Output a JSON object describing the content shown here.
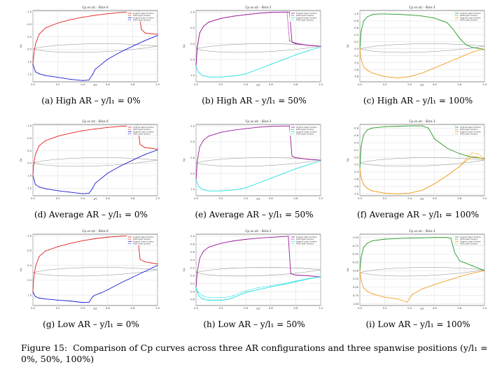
{
  "colors": {
    "red": "#e02020",
    "blue": "#1a1ad8",
    "purple": "#9a1a9a",
    "cyan": "#22e0e0",
    "green": "#229922",
    "orange": "#f0a020",
    "grid": "#dddddd",
    "profile": "#888888"
  },
  "chart_data": [
    {
      "type": "line",
      "title": "Cp vs x/c - Slice 0",
      "xlabel": "x/c",
      "ylabel": "Cp",
      "caption": "(a) High AR – y/l₁ = 0%",
      "palette": [
        "red",
        "blue"
      ],
      "legend": [
        "Original Upper Surface",
        "POD Upper Surface",
        "Original Lower Surface",
        "POD Lower Surface"
      ],
      "xticks": [
        "0.0",
        "0.2",
        "0.4",
        "0.6",
        "0.8",
        "1.0"
      ],
      "xlim": [
        0,
        1
      ],
      "yticks": [
        "-1.0",
        "-0.5",
        "0.0",
        "0.5",
        "1.0",
        "1.5"
      ],
      "ylim": [
        -1.05,
        1.8
      ],
      "upper": {
        "x": [
          0,
          0.005,
          0.02,
          0.05,
          0.1,
          0.2,
          0.3,
          0.4,
          0.5,
          0.6,
          0.7,
          0.8,
          0.85,
          0.87,
          0.9,
          0.95,
          1.0
        ],
        "y": [
          1.1,
          0.8,
          0.3,
          -0.1,
          -0.35,
          -0.55,
          -0.68,
          -0.78,
          -0.86,
          -0.92,
          -0.97,
          -1.0,
          -1.02,
          -0.3,
          -0.15,
          -0.12,
          -0.1
        ]
      },
      "lower": {
        "x": [
          0,
          0.02,
          0.05,
          0.1,
          0.2,
          0.3,
          0.4,
          0.45,
          0.48,
          0.5,
          0.55,
          0.6,
          0.7,
          0.8,
          0.9,
          1.0
        ],
        "y": [
          1.1,
          1.4,
          1.48,
          1.55,
          1.62,
          1.7,
          1.75,
          1.73,
          1.5,
          1.3,
          1.1,
          0.9,
          0.62,
          0.38,
          0.15,
          -0.05
        ]
      }
    },
    {
      "type": "line",
      "title": "Cp vs x/c - Slice 2",
      "xlabel": "x/c",
      "ylabel": "Cp",
      "caption": "(b) High AR – y/l₁ = 50%",
      "palette": [
        "purple",
        "cyan"
      ],
      "legend": [
        "Original Upper Surface",
        "POD Upper Surface",
        "Original Lower Surface",
        "POD Lower Surface"
      ],
      "xticks": [
        "0.0",
        "0.2",
        "0.4",
        "0.6",
        "0.8",
        "1.0"
      ],
      "xlim": [
        0,
        1
      ],
      "yticks": [
        "-1.0",
        "-0.5",
        "0.0",
        "0.5",
        "1.0"
      ],
      "ylim": [
        -1.05,
        1.2
      ],
      "upper": {
        "x": [
          0,
          0.01,
          0.03,
          0.06,
          0.1,
          0.2,
          0.3,
          0.4,
          0.5,
          0.6,
          0.7,
          0.75,
          0.77,
          0.8,
          0.9,
          1.0
        ],
        "y": [
          0.7,
          0.1,
          -0.35,
          -0.55,
          -0.68,
          -0.8,
          -0.87,
          -0.92,
          -0.96,
          -0.99,
          -1.0,
          -1.0,
          -0.05,
          0.0,
          0.05,
          0.08
        ]
      },
      "upper2": {
        "x": [
          0,
          0.01,
          0.03,
          0.06,
          0.1,
          0.2,
          0.3,
          0.4,
          0.5,
          0.6,
          0.7,
          0.73,
          0.75,
          0.8,
          0.9,
          1.0
        ],
        "y": [
          0.7,
          0.1,
          -0.35,
          -0.55,
          -0.68,
          -0.8,
          -0.87,
          -0.92,
          -0.96,
          -0.99,
          -1.0,
          -1.0,
          -0.1,
          -0.02,
          0.05,
          0.08
        ]
      },
      "lower": {
        "x": [
          0,
          0.02,
          0.05,
          0.1,
          0.2,
          0.3,
          0.4,
          0.5,
          0.6,
          0.7,
          0.8,
          0.9,
          1.0
        ],
        "y": [
          0.7,
          0.9,
          1.0,
          1.05,
          1.05,
          1.02,
          0.95,
          0.8,
          0.65,
          0.5,
          0.35,
          0.22,
          0.1
        ]
      }
    },
    {
      "type": "line",
      "title": "Cp vs x/c - Slice 3",
      "xlabel": "x/c",
      "ylabel": "Cp",
      "caption": "(c) High AR – y/l₁ = 100%",
      "palette": [
        "green",
        "orange"
      ],
      "legend": [
        "Original Upper Surface",
        "POD Upper Surface",
        "Original Lower Surface",
        "POD Lower Surface"
      ],
      "xticks": [
        "0.0",
        "0.2",
        "0.4",
        "0.6",
        "0.8",
        "1.0"
      ],
      "xlim": [
        0,
        1
      ],
      "yticks": [
        "-1.0",
        "-0.8",
        "-0.6",
        "-0.4",
        "-0.2",
        "0.0",
        "0.2",
        "0.4",
        "0.6",
        "0.8"
      ],
      "ylim": [
        -1.1,
        0.95
      ],
      "upper": {
        "x": [
          0,
          0.01,
          0.03,
          0.06,
          0.1,
          0.15,
          0.2,
          0.3,
          0.4,
          0.5,
          0.6,
          0.7,
          0.75,
          0.8,
          0.85,
          0.9,
          1.0
        ],
        "y": [
          0.0,
          -0.5,
          -0.8,
          -0.92,
          -0.98,
          -1.0,
          -1.0,
          -0.99,
          -0.97,
          -0.94,
          -0.88,
          -0.75,
          -0.55,
          -0.3,
          -0.12,
          -0.04,
          0.02
        ]
      },
      "lower": {
        "x": [
          0,
          0.01,
          0.03,
          0.06,
          0.1,
          0.2,
          0.3,
          0.4,
          0.5,
          0.6,
          0.7,
          0.8,
          0.9,
          0.95,
          1.0
        ],
        "y": [
          0.0,
          0.3,
          0.52,
          0.62,
          0.7,
          0.8,
          0.84,
          0.8,
          0.7,
          0.55,
          0.4,
          0.25,
          0.1,
          0.04,
          0.02
        ]
      }
    },
    {
      "type": "line",
      "title": "Cp vs x/c - Slice 0",
      "xlabel": "x/c",
      "ylabel": "Cp",
      "caption": "(d) Average AR – y/l₁ = 0%",
      "palette": [
        "red",
        "blue"
      ],
      "legend": [
        "Original Upper Surface",
        "POD Upper Surface",
        "Original Lower Surface",
        "POD Lower Surface"
      ],
      "xticks": [
        "0.0",
        "0.2",
        "0.4",
        "0.6",
        "0.8",
        "1.0"
      ],
      "xlim": [
        0,
        1
      ],
      "yticks": [
        "-1.0",
        "-0.5",
        "0.0",
        "0.5",
        "1.0",
        "1.5"
      ],
      "ylim": [
        -1.05,
        1.8
      ],
      "upper": {
        "x": [
          0,
          0.005,
          0.02,
          0.05,
          0.1,
          0.2,
          0.3,
          0.4,
          0.5,
          0.6,
          0.7,
          0.8,
          0.84,
          0.86,
          0.9,
          0.95,
          1.0
        ],
        "y": [
          1.0,
          0.6,
          0.15,
          -0.2,
          -0.4,
          -0.58,
          -0.7,
          -0.8,
          -0.87,
          -0.93,
          -0.97,
          -1.0,
          -1.02,
          -0.25,
          -0.12,
          -0.1,
          -0.05
        ]
      },
      "lower": {
        "x": [
          0,
          0.02,
          0.05,
          0.1,
          0.2,
          0.3,
          0.4,
          0.45,
          0.48,
          0.5,
          0.55,
          0.6,
          0.7,
          0.8,
          0.9,
          1.0
        ],
        "y": [
          1.0,
          1.35,
          1.45,
          1.52,
          1.6,
          1.66,
          1.72,
          1.7,
          1.5,
          1.3,
          1.1,
          0.9,
          0.62,
          0.38,
          0.15,
          -0.03
        ]
      }
    },
    {
      "type": "line",
      "title": "Cp vs x/c - Slice 2",
      "xlabel": "x/c",
      "ylabel": "Cp",
      "caption": "(e) Average AR – y/l₁ = 50%",
      "palette": [
        "purple",
        "cyan"
      ],
      "legend": [
        "Original Upper Surface",
        "POD Upper Surface",
        "Original Lower Surface",
        "POD Lower Surface"
      ],
      "xticks": [
        "0.0",
        "0.2",
        "0.4",
        "0.6",
        "0.8",
        "1.0"
      ],
      "xlim": [
        0,
        1
      ],
      "yticks": [
        "-1.0",
        "-0.5",
        "0.0",
        "0.5",
        "1.0"
      ],
      "ylim": [
        -1.05,
        1.2
      ],
      "upper": {
        "x": [
          0,
          0.01,
          0.03,
          0.06,
          0.1,
          0.2,
          0.3,
          0.4,
          0.5,
          0.6,
          0.7,
          0.75,
          0.77,
          0.8,
          0.9,
          1.0
        ],
        "y": [
          0.7,
          0.1,
          -0.35,
          -0.55,
          -0.68,
          -0.8,
          -0.87,
          -0.92,
          -0.96,
          -0.99,
          -1.0,
          -1.0,
          -0.05,
          0.0,
          0.05,
          0.08
        ]
      },
      "lower": {
        "x": [
          0,
          0.02,
          0.05,
          0.1,
          0.2,
          0.3,
          0.4,
          0.5,
          0.6,
          0.7,
          0.8,
          0.9,
          1.0
        ],
        "y": [
          0.7,
          0.9,
          1.0,
          1.05,
          1.05,
          1.02,
          0.95,
          0.8,
          0.65,
          0.5,
          0.35,
          0.22,
          0.1
        ]
      }
    },
    {
      "type": "line",
      "title": "Cp vs x/c - Slice 3",
      "xlabel": "x/c",
      "ylabel": "Cp",
      "caption": "(f) Average AR – y/l₁ = 100%",
      "palette": [
        "green",
        "orange"
      ],
      "legend": [
        "Original Upper Surface",
        "POD Upper Surface",
        "Original Lower Surface",
        "POD Lower Surface"
      ],
      "xticks": [
        "0.0",
        "0.2",
        "0.4",
        "0.6",
        "0.8",
        "1.0"
      ],
      "xlim": [
        0,
        1
      ],
      "yticks": [
        "-0.8",
        "-0.6",
        "-0.4",
        "-0.2",
        "0.0",
        "0.2",
        "0.4",
        "0.6",
        "0.8",
        "1.0"
      ],
      "ylim": [
        -0.9,
        1.05
      ],
      "upper": {
        "x": [
          0,
          0.01,
          0.03,
          0.06,
          0.1,
          0.2,
          0.3,
          0.4,
          0.5,
          0.55,
          0.6,
          0.7,
          0.8,
          0.9,
          1.0
        ],
        "y": [
          0.3,
          -0.3,
          -0.62,
          -0.75,
          -0.8,
          -0.84,
          -0.85,
          -0.86,
          -0.86,
          -0.8,
          -0.5,
          -0.25,
          -0.1,
          0.0,
          0.03
        ]
      },
      "lower": {
        "x": [
          0,
          0.01,
          0.03,
          0.06,
          0.1,
          0.2,
          0.3,
          0.4,
          0.5,
          0.6,
          0.7,
          0.8,
          0.85,
          0.9,
          0.95,
          1.0
        ],
        "y": [
          0.3,
          0.55,
          0.75,
          0.85,
          0.92,
          0.98,
          1.0,
          0.98,
          0.9,
          0.72,
          0.5,
          0.25,
          0.1,
          -0.02,
          0.0,
          0.05
        ]
      },
      "lower2": {
        "x": [
          0,
          0.01,
          0.03,
          0.06,
          0.1,
          0.2,
          0.3,
          0.4,
          0.5,
          0.6,
          0.7,
          0.8,
          0.85,
          0.9,
          0.95,
          1.0
        ],
        "y": [
          0.3,
          0.55,
          0.75,
          0.85,
          0.92,
          0.98,
          1.0,
          0.98,
          0.9,
          0.72,
          0.5,
          0.25,
          0.05,
          -0.12,
          -0.1,
          0.05
        ]
      }
    },
    {
      "type": "line",
      "title": "Cp vs x/c - Slice 0",
      "xlabel": "x/c",
      "ylabel": "Cp",
      "caption": "(g) Low AR – y/l₁ = 0%",
      "palette": [
        "red",
        "blue"
      ],
      "legend": [
        "Original Upper Surface",
        "POD Upper Surface",
        "Original Lower Surface",
        "POD Lower Surface"
      ],
      "xticks": [
        "0.0",
        "0.2",
        "0.4",
        "0.6",
        "0.8",
        "1.0"
      ],
      "xlim": [
        0,
        1
      ],
      "yticks": [
        "-1.0",
        "-0.5",
        "0.0",
        "0.5",
        "1.0"
      ],
      "ylim": [
        -1.05,
        1.35
      ],
      "upper": {
        "x": [
          0,
          0.005,
          0.02,
          0.05,
          0.1,
          0.2,
          0.3,
          0.4,
          0.5,
          0.6,
          0.7,
          0.8,
          0.84,
          0.86,
          0.9,
          0.95,
          1.0
        ],
        "y": [
          0.9,
          0.5,
          0.05,
          -0.3,
          -0.48,
          -0.63,
          -0.74,
          -0.83,
          -0.9,
          -0.95,
          -0.98,
          -1.0,
          -1.02,
          -0.2,
          -0.12,
          -0.08,
          -0.05
        ]
      },
      "lower": {
        "x": [
          0,
          0.02,
          0.05,
          0.1,
          0.2,
          0.3,
          0.4,
          0.45,
          0.48,
          0.5,
          0.55,
          0.6,
          0.7,
          0.8,
          0.9,
          1.0
        ],
        "y": [
          0.9,
          1.05,
          1.1,
          1.13,
          1.17,
          1.2,
          1.25,
          1.24,
          1.05,
          1.0,
          0.92,
          0.82,
          0.6,
          0.4,
          0.2,
          0.0
        ]
      }
    },
    {
      "type": "line",
      "title": "Cp vs x/c - Slice 2",
      "xlabel": "x/c",
      "ylabel": "Cp",
      "caption": "(h) Low AR – y/l₁ = 50%",
      "palette": [
        "purple",
        "cyan"
      ],
      "legend": [
        "Original Upper Surface",
        "POD Upper Surface",
        "Original Lower Surface",
        "POD Lower Surface"
      ],
      "xticks": [
        "0.0",
        "0.2",
        "0.4",
        "0.6",
        "0.8",
        "1.0"
      ],
      "xlim": [
        0,
        1
      ],
      "yticks": [
        "-1.0",
        "-0.8",
        "-0.6",
        "-0.4",
        "-0.2",
        "0.0",
        "0.2",
        "0.4",
        "0.6"
      ],
      "ylim": [
        -1.05,
        0.75
      ],
      "upper": {
        "x": [
          0,
          0.01,
          0.03,
          0.06,
          0.1,
          0.2,
          0.3,
          0.4,
          0.5,
          0.6,
          0.7,
          0.74,
          0.76,
          0.8,
          0.9,
          1.0
        ],
        "y": [
          0.3,
          -0.1,
          -0.45,
          -0.62,
          -0.72,
          -0.82,
          -0.88,
          -0.92,
          -0.95,
          -0.97,
          -0.99,
          -1.0,
          -0.05,
          -0.02,
          0.0,
          0.03
        ]
      },
      "lower": {
        "x": [
          0,
          0.02,
          0.05,
          0.1,
          0.2,
          0.25,
          0.3,
          0.4,
          0.5,
          0.6,
          0.7,
          0.8,
          0.9,
          1.0
        ],
        "y": [
          0.3,
          0.5,
          0.58,
          0.62,
          0.62,
          0.6,
          0.55,
          0.42,
          0.35,
          0.28,
          0.22,
          0.15,
          0.08,
          0.03
        ]
      },
      "lower2": {
        "x": [
          0,
          0.02,
          0.05,
          0.1,
          0.2,
          0.25,
          0.3,
          0.4,
          0.5,
          0.6,
          0.7,
          0.8,
          0.9,
          1.0
        ],
        "y": [
          0.3,
          0.42,
          0.5,
          0.55,
          0.55,
          0.54,
          0.5,
          0.38,
          0.3,
          0.25,
          0.2,
          0.13,
          0.07,
          0.03
        ]
      }
    },
    {
      "type": "line",
      "title": "Cp vs x/c - Slice 3",
      "xlabel": "x/c",
      "ylabel": "Cp",
      "caption": "(i) Low AR – y/l₁ = 100%",
      "palette": [
        "green",
        "orange"
      ],
      "legend": [
        "Original Upper Surface",
        "POD Upper Surface",
        "Original Lower Surface",
        "POD Lower Surface"
      ],
      "xticks": [
        "0.0",
        "0.2",
        "0.4",
        "0.6",
        "0.8",
        "1.0"
      ],
      "xlim": [
        0,
        1
      ],
      "yticks": [
        "-1.00",
        "-0.75",
        "-0.50",
        "-0.25",
        "0.00",
        "0.25",
        "0.50",
        "0.75",
        "1.00"
      ],
      "ylim": [
        -1.1,
        1.05
      ],
      "upper": {
        "x": [
          0,
          0.01,
          0.03,
          0.06,
          0.1,
          0.2,
          0.3,
          0.4,
          0.5,
          0.6,
          0.7,
          0.73,
          0.76,
          0.8,
          0.9,
          1.0
        ],
        "y": [
          0.0,
          -0.4,
          -0.7,
          -0.83,
          -0.9,
          -0.95,
          -0.97,
          -0.98,
          -0.99,
          -1.0,
          -1.0,
          -0.98,
          -0.55,
          -0.3,
          -0.15,
          0.0
        ]
      },
      "lower": {
        "x": [
          0,
          0.01,
          0.03,
          0.06,
          0.1,
          0.2,
          0.3,
          0.38,
          0.42,
          0.5,
          0.6,
          0.7,
          0.8,
          0.9,
          1.0
        ],
        "y": [
          0.0,
          0.3,
          0.52,
          0.62,
          0.7,
          0.8,
          0.85,
          0.95,
          0.72,
          0.55,
          0.42,
          0.3,
          0.18,
          0.08,
          0.0
        ]
      }
    }
  ],
  "figure_caption": {
    "label": "Figure 15:",
    "text": "Comparison of Cp curves across three AR configurations and three spanwise positions (y/l₁ = 0%, 50%, 100%)"
  }
}
